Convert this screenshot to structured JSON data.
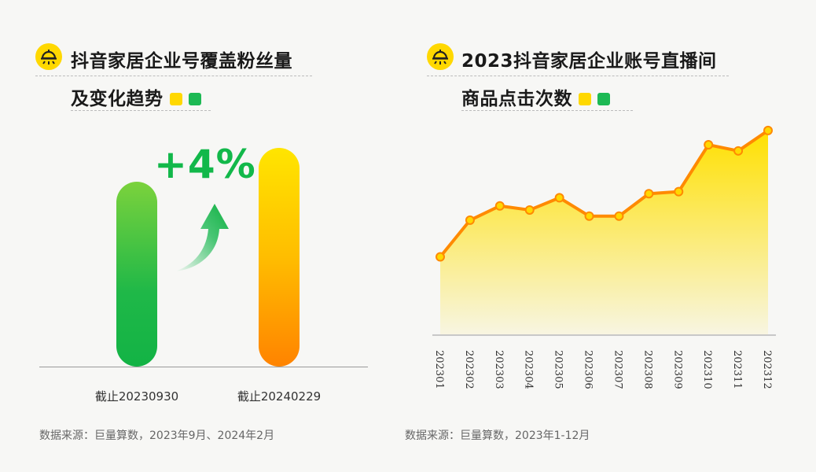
{
  "left": {
    "title_line1": "抖音家居企业号覆盖粉丝量",
    "title_line2": "及变化趋势",
    "legend_colors": [
      "#ffd800",
      "#1db954"
    ],
    "growth_label": "+4%",
    "source": "数据来源：巨量算数，2023年9月、2024年2月",
    "icon": "sun-lamp-icon"
  },
  "right": {
    "title_line1": "2023抖音家居企业账号直播间",
    "title_line2": "商品点击次数",
    "legend_colors": [
      "#ffd800",
      "#1db954"
    ],
    "source": "数据来源：巨量算数，2023年1-12月",
    "icon": "sun-lamp-icon"
  },
  "chart_data": [
    {
      "type": "bar",
      "categories": [
        "截止20230930",
        "截止20240229"
      ],
      "values": [
        100,
        104
      ],
      "colors": [
        "#1db954",
        "#ffa300"
      ],
      "annotation": "+4%"
    },
    {
      "type": "area",
      "x": [
        "202301",
        "202302",
        "202303",
        "202304",
        "202305",
        "202306",
        "202307",
        "202308",
        "202309",
        "202310",
        "202311",
        "202312"
      ],
      "values": [
        38,
        56,
        63,
        61,
        67,
        58,
        58,
        69,
        70,
        93,
        90,
        100
      ],
      "ylim": [
        0,
        110
      ],
      "line_color": "#ff8a00",
      "fill_color": "#ffe000"
    }
  ]
}
